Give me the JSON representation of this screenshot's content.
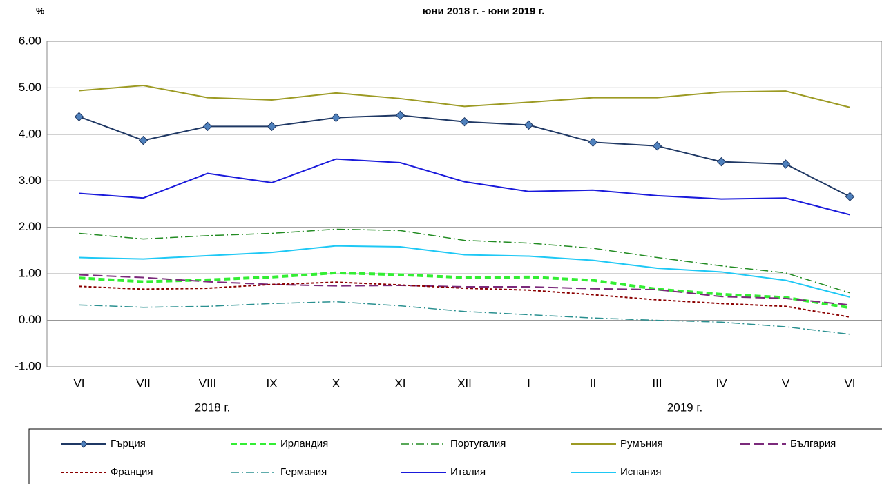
{
  "chart_data": {
    "type": "line",
    "title": "юни 2018 г. - юни 2019 г.",
    "y_label": "%",
    "categories": [
      "VI",
      "VII",
      "VIII",
      "IX",
      "X",
      "XI",
      "XII",
      "I",
      "II",
      "III",
      "IV",
      "V",
      "VI"
    ],
    "year_labels": [
      "2018 г.",
      "2019 г."
    ],
    "ylim": [
      -1,
      6
    ],
    "yticks": [
      {
        "value": -1,
        "label": "-1.00"
      },
      {
        "value": 0,
        "label": "0.00"
      },
      {
        "value": 1,
        "label": "1.00"
      },
      {
        "value": 2,
        "label": "2.00"
      },
      {
        "value": 3,
        "label": "3.00"
      },
      {
        "value": 4,
        "label": "4.00"
      },
      {
        "value": 5,
        "label": "5.00"
      },
      {
        "value": 6,
        "label": "6.00"
      }
    ],
    "grid": true,
    "legend": "bottom",
    "series": [
      {
        "name": "Гърция",
        "color": "#1f3864",
        "marker": "diamond",
        "dash": "",
        "width": 2,
        "values": [
          4.38,
          3.87,
          4.17,
          4.17,
          4.36,
          4.41,
          4.27,
          4.2,
          3.83,
          3.75,
          3.41,
          3.36,
          2.66
        ]
      },
      {
        "name": "Ирландия",
        "color": "#33ee33",
        "dash": "9 5",
        "width": 4,
        "values": [
          0.91,
          0.83,
          0.87,
          0.93,
          1.02,
          0.98,
          0.92,
          0.93,
          0.86,
          0.67,
          0.56,
          0.49,
          0.27
        ]
      },
      {
        "name": "Португалия",
        "color": "#228b22",
        "dash": "12 4 2 4",
        "width": 1.5,
        "values": [
          1.87,
          1.75,
          1.82,
          1.87,
          1.96,
          1.93,
          1.72,
          1.66,
          1.55,
          1.35,
          1.17,
          1.02,
          0.59
        ]
      },
      {
        "name": "Румъния",
        "color": "#9c9a23",
        "dash": "",
        "width": 2,
        "values": [
          4.94,
          5.05,
          4.79,
          4.74,
          4.89,
          4.77,
          4.6,
          4.69,
          4.79,
          4.79,
          4.91,
          4.93,
          4.58
        ]
      },
      {
        "name": "България",
        "color": "#7b2a7b",
        "dash": "14 6",
        "width": 2,
        "values": [
          0.98,
          0.92,
          0.83,
          0.77,
          0.74,
          0.75,
          0.72,
          0.72,
          0.68,
          0.66,
          0.51,
          0.47,
          0.33
        ]
      },
      {
        "name": "Франция",
        "color": "#8b0000",
        "dash": "4 3",
        "width": 2,
        "values": [
          0.73,
          0.67,
          0.69,
          0.77,
          0.82,
          0.76,
          0.69,
          0.65,
          0.55,
          0.44,
          0.36,
          0.3,
          0.07
        ]
      },
      {
        "name": "Германия",
        "color": "#2a9090",
        "dash": "12 4 2 4",
        "width": 1.5,
        "values": [
          0.33,
          0.28,
          0.3,
          0.36,
          0.4,
          0.31,
          0.19,
          0.12,
          0.05,
          0.0,
          -0.04,
          -0.14,
          -0.3
        ]
      },
      {
        "name": "Италия",
        "color": "#1a1adb",
        "dash": "",
        "width": 2,
        "values": [
          2.73,
          2.63,
          3.16,
          2.96,
          3.47,
          3.39,
          2.98,
          2.77,
          2.8,
          2.68,
          2.61,
          2.63,
          2.27
        ]
      },
      {
        "name": "Испания",
        "color": "#1ec8f5",
        "dash": "",
        "width": 2,
        "values": [
          1.35,
          1.32,
          1.39,
          1.46,
          1.6,
          1.58,
          1.41,
          1.38,
          1.29,
          1.12,
          1.04,
          0.86,
          0.5
        ]
      }
    ]
  }
}
